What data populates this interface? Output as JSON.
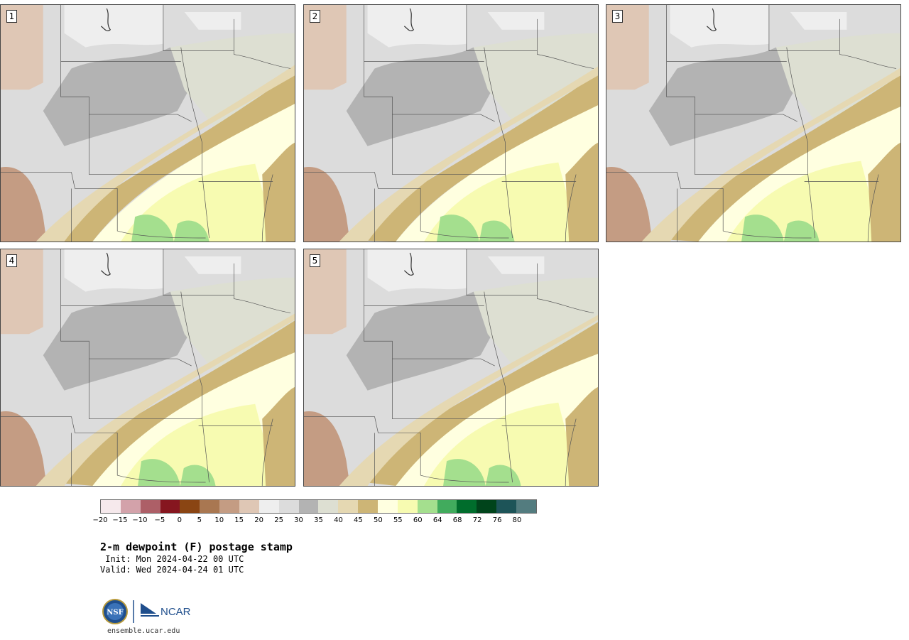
{
  "panels": [
    {
      "label": "1",
      "variant": 0
    },
    {
      "label": "2",
      "variant": 1
    },
    {
      "label": "3",
      "variant": 2
    },
    {
      "label": "4",
      "variant": 3
    },
    {
      "label": "5",
      "variant": 4
    }
  ],
  "colorbar": {
    "colors": [
      "#f6e9ec",
      "#d3a2aa",
      "#ad5f67",
      "#86161f",
      "#8a4513",
      "#a97751",
      "#c49c83",
      "#dfc7b5",
      "#eeeeee",
      "#dcdcdc",
      "#b3b3b3",
      "#dddfd2",
      "#e5d8b2",
      "#cdb576",
      "#ffffe0",
      "#f7fbb1",
      "#a4df8e",
      "#41ab5d",
      "#006d2c",
      "#00441b",
      "#1d5458",
      "#537c7f"
    ],
    "tick_labels": [
      "−20",
      "−15",
      "−10",
      "−5",
      "0",
      "5",
      "10",
      "15",
      "20",
      "25",
      "30",
      "35",
      "40",
      "45",
      "50",
      "55",
      "60",
      "64",
      "68",
      "72",
      "76",
      "80"
    ]
  },
  "title": "2-m dewpoint (F) postage stamp",
  "init": " Init: Mon 2024-04-22 00 UTC",
  "valid": "Valid: Wed 2024-04-24 01 UTC",
  "logos": {
    "nsf": "NSF",
    "ncar": "NCAR"
  },
  "url": "ensemble.ucar.edu"
}
